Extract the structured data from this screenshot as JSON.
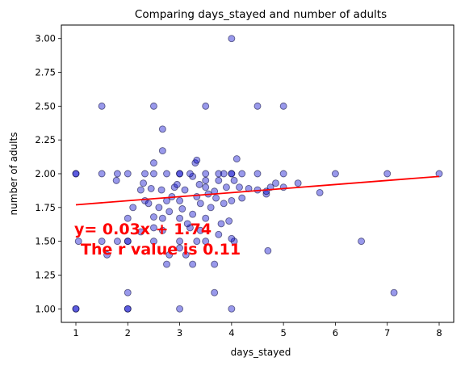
{
  "chart_data": {
    "type": "scatter",
    "title": "Comparing days_stayed and  number of adults",
    "xlabel": "days_stayed",
    "ylabel": "number of adults",
    "xlim": [
      0.72,
      8.28
    ],
    "ylim": [
      0.9,
      3.1
    ],
    "xticks": [
      1,
      2,
      3,
      4,
      5,
      6,
      7,
      8
    ],
    "yticks": [
      1.0,
      1.25,
      1.5,
      1.75,
      2.0,
      2.25,
      2.5,
      2.75,
      3.0
    ],
    "ytick_labels": [
      "1.00",
      "1.25",
      "1.50",
      "1.75",
      "2.00",
      "2.25",
      "2.50",
      "2.75",
      "3.00"
    ],
    "grid": false,
    "marker_color": "#0000cc",
    "marker_alpha": 0.4,
    "regression": {
      "slope": 0.03,
      "intercept": 1.74,
      "x_range": [
        1,
        8
      ],
      "color": "#ff0000",
      "equation_text": "y= 0.03x + 1.74",
      "r_text": "The r value is 0.11"
    },
    "points": [
      [
        1,
        1
      ],
      [
        1,
        1
      ],
      [
        2,
        1
      ],
      [
        2,
        1
      ],
      [
        3,
        1
      ],
      [
        4,
        1
      ],
      [
        2,
        1.12
      ],
      [
        3.67,
        1.12
      ],
      [
        7.13,
        1.12
      ],
      [
        2.75,
        1.33
      ],
      [
        3.25,
        1.33
      ],
      [
        3.67,
        1.33
      ],
      [
        2.8,
        1.4
      ],
      [
        3.12,
        1.4
      ],
      [
        1.05,
        1.5
      ],
      [
        1.5,
        1.5
      ],
      [
        1.6,
        1.4
      ],
      [
        1.8,
        1.5
      ],
      [
        2,
        1.5
      ],
      [
        2,
        1.5
      ],
      [
        2.5,
        1.5
      ],
      [
        3,
        1.5
      ],
      [
        3,
        1.45
      ],
      [
        3.33,
        1.5
      ],
      [
        3.5,
        1.5
      ],
      [
        4.05,
        1.5
      ],
      [
        4.7,
        1.43
      ],
      [
        6.5,
        1.5
      ],
      [
        2.25,
        1.57
      ],
      [
        2.5,
        1.6
      ],
      [
        2.67,
        1.58
      ],
      [
        3.2,
        1.6
      ],
      [
        3.4,
        1.58
      ],
      [
        3.75,
        1.55
      ],
      [
        4,
        1.52
      ],
      [
        2,
        1.67
      ],
      [
        2.5,
        1.68
      ],
      [
        2.67,
        1.67
      ],
      [
        3,
        1.67
      ],
      [
        3.15,
        1.63
      ],
      [
        3.25,
        1.7
      ],
      [
        3.5,
        1.67
      ],
      [
        3.8,
        1.63
      ],
      [
        3.95,
        1.65
      ],
      [
        2.6,
        1.75
      ],
      [
        2.8,
        1.72
      ],
      [
        3.05,
        1.74
      ],
      [
        3.4,
        1.78
      ],
      [
        3.6,
        1.75
      ],
      [
        3.85,
        1.78
      ],
      [
        2.1,
        1.75
      ],
      [
        2.33,
        1.8
      ],
      [
        2.4,
        1.78
      ],
      [
        2.75,
        1.8
      ],
      [
        2.85,
        1.83
      ],
      [
        3,
        1.8
      ],
      [
        3.33,
        1.83
      ],
      [
        3.55,
        1.85
      ],
      [
        3.7,
        1.82
      ],
      [
        4,
        1.8
      ],
      [
        4.2,
        1.82
      ],
      [
        4.67,
        1.85
      ],
      [
        4.67,
        1.87
      ],
      [
        2.25,
        1.88
      ],
      [
        2.45,
        1.89
      ],
      [
        2.65,
        1.88
      ],
      [
        2.9,
        1.9
      ],
      [
        3.1,
        1.88
      ],
      [
        3.38,
        1.92
      ],
      [
        3.5,
        1.9
      ],
      [
        3.67,
        1.87
      ],
      [
        3.9,
        1.9
      ],
      [
        4.15,
        1.9
      ],
      [
        4.33,
        1.89
      ],
      [
        4.5,
        1.88
      ],
      [
        4.75,
        1.9
      ],
      [
        4.85,
        1.93
      ],
      [
        5,
        1.9
      ],
      [
        5.28,
        1.93
      ],
      [
        5.7,
        1.86
      ],
      [
        1.78,
        1.95
      ],
      [
        2.3,
        1.93
      ],
      [
        2.95,
        1.92
      ],
      [
        3.25,
        1.98
      ],
      [
        3.5,
        1.95
      ],
      [
        3.75,
        1.95
      ],
      [
        4.05,
        1.95
      ],
      [
        1,
        2
      ],
      [
        1,
        2
      ],
      [
        1.5,
        2
      ],
      [
        1.8,
        2
      ],
      [
        2,
        2
      ],
      [
        2.33,
        2
      ],
      [
        2.5,
        2
      ],
      [
        2.75,
        2
      ],
      [
        3,
        2
      ],
      [
        3,
        2
      ],
      [
        3.2,
        2
      ],
      [
        3.5,
        2
      ],
      [
        3.75,
        2
      ],
      [
        3.85,
        2
      ],
      [
        4,
        2
      ],
      [
        4,
        2
      ],
      [
        4.2,
        2
      ],
      [
        4.5,
        2
      ],
      [
        5,
        2
      ],
      [
        6,
        2
      ],
      [
        7,
        2
      ],
      [
        8,
        2
      ],
      [
        2.5,
        2.08
      ],
      [
        3.3,
        2.08
      ],
      [
        3.33,
        2.1
      ],
      [
        4.1,
        2.11
      ],
      [
        2.67,
        2.17
      ],
      [
        2.67,
        2.33
      ],
      [
        1.5,
        2.5
      ],
      [
        2.5,
        2.5
      ],
      [
        3.5,
        2.5
      ],
      [
        4.5,
        2.5
      ],
      [
        5,
        2.5
      ],
      [
        4,
        3
      ]
    ]
  }
}
